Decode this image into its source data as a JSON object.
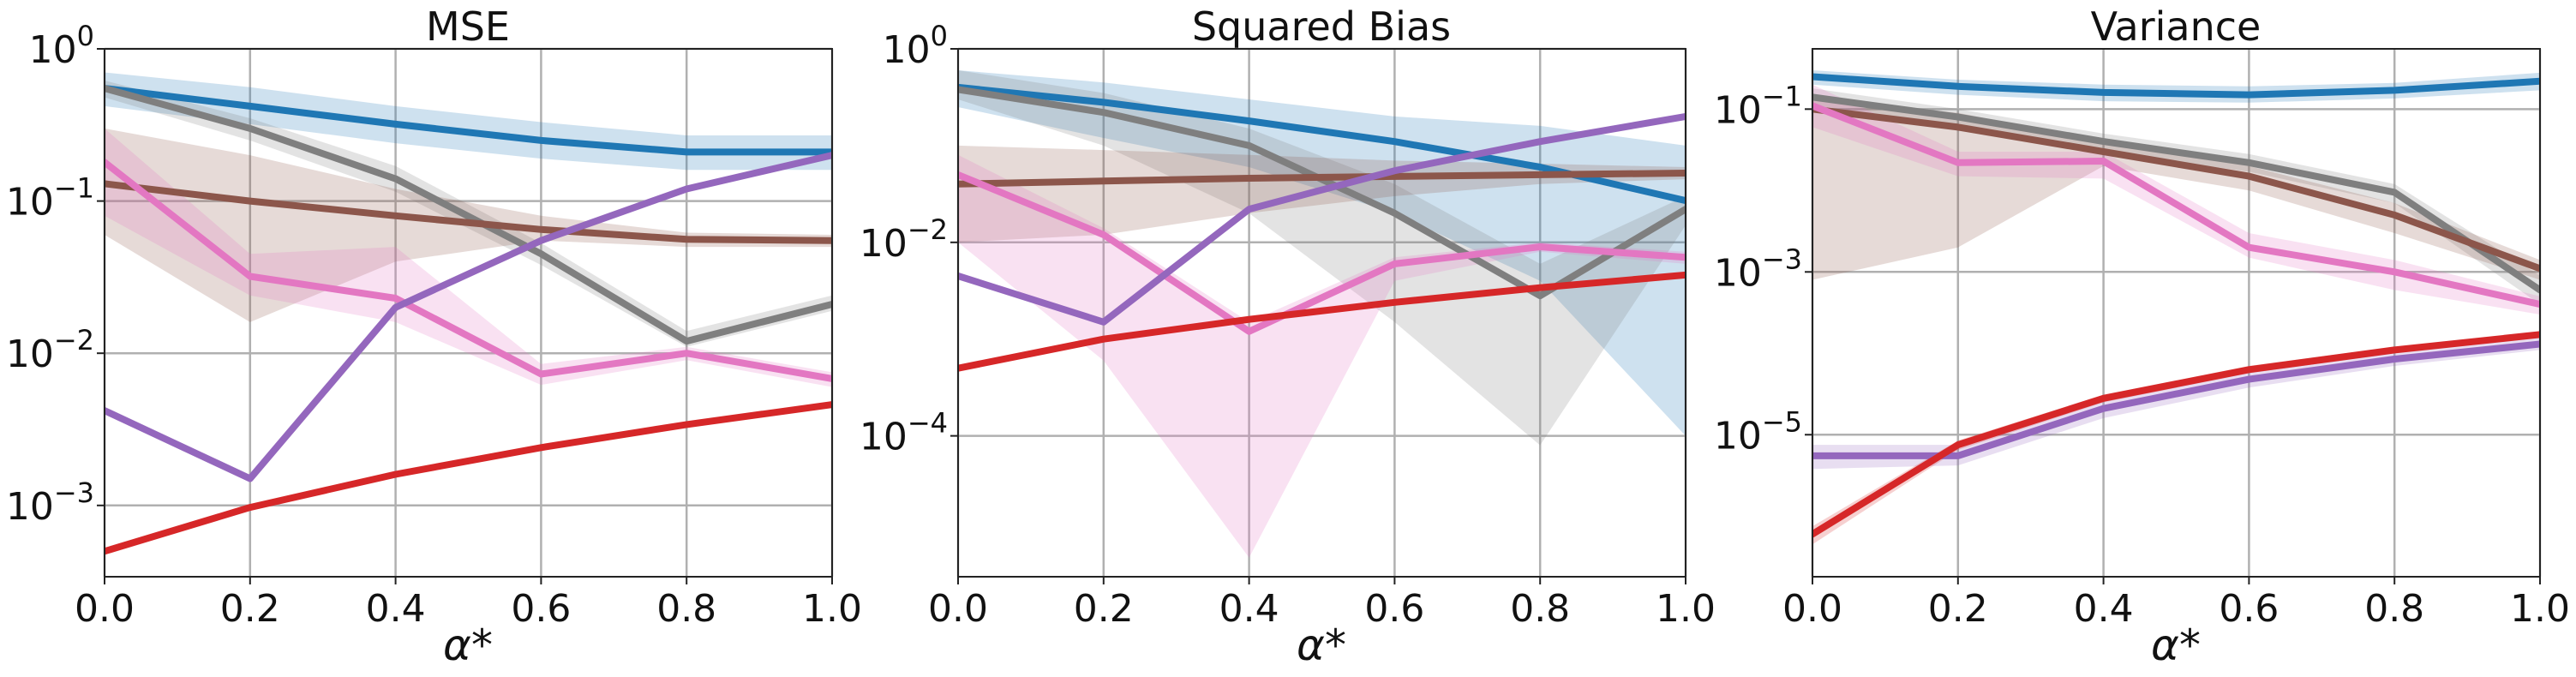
{
  "figure": {
    "background": "#ffffff"
  },
  "chart_data": [
    {
      "type": "line",
      "title": "MSE",
      "xlabel": "α*",
      "ylabel": "",
      "yscale": "log",
      "xlim": [
        0.0,
        1.0
      ],
      "ylim": [
        0.00034,
        1.0
      ],
      "grid": true,
      "x": [
        0.0,
        0.2,
        0.4,
        0.6,
        0.8,
        1.0
      ],
      "x_ticks": [
        "0.0",
        "0.2",
        "0.4",
        "0.6",
        "0.8",
        "1.0"
      ],
      "y_ticks": [
        {
          "base": "10",
          "exp": "0",
          "value": 1
        },
        {
          "base": "10",
          "exp": "−1",
          "value": 0.1
        },
        {
          "base": "10",
          "exp": "−2",
          "value": 0.01
        },
        {
          "base": "10",
          "exp": "−3",
          "value": 0.001
        }
      ],
      "series": [
        {
          "color": "#1f77b4",
          "values": [
            0.55,
            0.42,
            0.32,
            0.25,
            0.21,
            0.21
          ],
          "band_low": [
            0.42,
            0.32,
            0.24,
            0.19,
            0.16,
            0.16
          ],
          "band_high": [
            0.7,
            0.56,
            0.42,
            0.33,
            0.27,
            0.27
          ]
        },
        {
          "color": "#7f7f7f",
          "values": [
            0.55,
            0.3,
            0.14,
            0.045,
            0.012,
            0.021
          ],
          "band_low": [
            0.48,
            0.25,
            0.115,
            0.038,
            0.011,
            0.019
          ],
          "band_high": [
            0.62,
            0.35,
            0.17,
            0.053,
            0.014,
            0.024
          ]
        },
        {
          "color": "#8c564b",
          "values": [
            0.13,
            0.1,
            0.08,
            0.065,
            0.056,
            0.055
          ],
          "band_low": [
            0.06,
            0.016,
            0.04,
            0.055,
            0.05,
            0.05
          ],
          "band_high": [
            0.3,
            0.2,
            0.12,
            0.08,
            0.062,
            0.06
          ]
        },
        {
          "color": "#e377c2",
          "values": [
            0.18,
            0.032,
            0.023,
            0.0073,
            0.01,
            0.0068
          ],
          "band_low": [
            0.08,
            0.024,
            0.016,
            0.0062,
            0.009,
            0.006
          ],
          "band_high": [
            0.3,
            0.045,
            0.05,
            0.0085,
            0.011,
            0.0075
          ]
        },
        {
          "color": "#9467bd",
          "values": [
            0.0042,
            0.0015,
            0.02,
            0.055,
            0.12,
            0.2
          ],
          "band_low": [
            0.0041,
            0.00145,
            0.0195,
            0.054,
            0.118,
            0.195
          ],
          "band_high": [
            0.0043,
            0.00155,
            0.0205,
            0.056,
            0.122,
            0.205
          ]
        },
        {
          "color": "#d62728",
          "values": [
            0.0005,
            0.00097,
            0.0016,
            0.0024,
            0.0034,
            0.0046
          ],
          "band_low": [
            0.00048,
            0.00093,
            0.00155,
            0.00232,
            0.00325,
            0.0044
          ],
          "band_high": [
            0.00052,
            0.00101,
            0.00165,
            0.00248,
            0.00355,
            0.0048
          ]
        }
      ]
    },
    {
      "type": "line",
      "title": "Squared Bias",
      "xlabel": "α*",
      "ylabel": "",
      "yscale": "log",
      "xlim": [
        0.0,
        1.0
      ],
      "ylim": [
        3.5e-06,
        1.0
      ],
      "grid": true,
      "x": [
        0.0,
        0.2,
        0.4,
        0.6,
        0.8,
        1.0
      ],
      "x_ticks": [
        "0.0",
        "0.2",
        "0.4",
        "0.6",
        "0.8",
        "1.0"
      ],
      "y_ticks": [
        {
          "base": "10",
          "exp": "0",
          "value": 1
        },
        {
          "base": "10",
          "exp": "−2",
          "value": 0.01
        },
        {
          "base": "10",
          "exp": "−4",
          "value": 0.0001
        }
      ],
      "series": [
        {
          "color": "#1f77b4",
          "values": [
            0.4,
            0.28,
            0.18,
            0.11,
            0.06,
            0.027
          ],
          "band_low": [
            0.25,
            0.12,
            0.06,
            0.02,
            0.004,
            0.0001
          ],
          "band_high": [
            0.6,
            0.45,
            0.3,
            0.2,
            0.16,
            0.1
          ]
        },
        {
          "color": "#7f7f7f",
          "values": [
            0.38,
            0.22,
            0.1,
            0.02,
            0.0028,
            0.022
          ],
          "band_low": [
            0.3,
            0.1,
            0.02,
            0.0015,
            8e-05,
            0.015
          ],
          "band_high": [
            0.6,
            0.35,
            0.15,
            0.04,
            0.006,
            0.03
          ]
        },
        {
          "color": "#8c564b",
          "values": [
            0.04,
            0.043,
            0.046,
            0.048,
            0.05,
            0.052
          ],
          "band_low": [
            0.01,
            0.012,
            0.02,
            0.03,
            0.04,
            0.045
          ],
          "band_high": [
            0.1,
            0.09,
            0.08,
            0.07,
            0.065,
            0.06
          ]
        },
        {
          "color": "#e377c2",
          "values": [
            0.05,
            0.012,
            0.0012,
            0.006,
            0.009,
            0.007
          ],
          "band_low": [
            0.01,
            0.0006,
            5.5e-06,
            0.004,
            0.008,
            0.006
          ],
          "band_high": [
            0.08,
            0.014,
            0.0015,
            0.007,
            0.01,
            0.008
          ]
        },
        {
          "color": "#9467bd",
          "values": [
            0.0045,
            0.0015,
            0.022,
            0.055,
            0.11,
            0.2
          ],
          "band_low": [
            0.0044,
            0.00147,
            0.0215,
            0.054,
            0.108,
            0.196
          ],
          "band_high": [
            0.0046,
            0.00153,
            0.0225,
            0.056,
            0.112,
            0.204
          ]
        },
        {
          "color": "#d62728",
          "values": [
            0.0005,
            0.001,
            0.0016,
            0.0024,
            0.0034,
            0.0046
          ],
          "band_low": [
            0.00048,
            0.00096,
            0.00155,
            0.00232,
            0.00325,
            0.0044
          ],
          "band_high": [
            0.00052,
            0.00104,
            0.00165,
            0.00248,
            0.00355,
            0.0048
          ]
        }
      ]
    },
    {
      "type": "line",
      "title": "Variance",
      "xlabel": "α*",
      "ylabel": "",
      "yscale": "log",
      "xlim": [
        0.0,
        1.0
      ],
      "ylim": [
        1.8e-07,
        0.55
      ],
      "grid": true,
      "x": [
        0.0,
        0.2,
        0.4,
        0.6,
        0.8,
        1.0
      ],
      "x_ticks": [
        "0.0",
        "0.2",
        "0.4",
        "0.6",
        "0.8",
        "1.0"
      ],
      "y_ticks": [
        {
          "base": "10",
          "exp": "−1",
          "value": 0.1
        },
        {
          "base": "10",
          "exp": "−3",
          "value": 0.001
        },
        {
          "base": "10",
          "exp": "−5",
          "value": 1e-05
        }
      ],
      "series": [
        {
          "color": "#1f77b4",
          "values": [
            0.25,
            0.19,
            0.16,
            0.15,
            0.17,
            0.22
          ],
          "band_low": [
            0.2,
            0.15,
            0.125,
            0.12,
            0.135,
            0.17
          ],
          "band_high": [
            0.3,
            0.23,
            0.2,
            0.19,
            0.21,
            0.28
          ]
        },
        {
          "color": "#7f7f7f",
          "values": [
            0.14,
            0.08,
            0.04,
            0.022,
            0.0095,
            0.0006
          ],
          "band_low": [
            0.1,
            0.06,
            0.03,
            0.017,
            0.007,
            0.0004
          ],
          "band_high": [
            0.18,
            0.1,
            0.05,
            0.028,
            0.012,
            0.0009
          ]
        },
        {
          "color": "#8c564b",
          "values": [
            0.1,
            0.06,
            0.03,
            0.015,
            0.005,
            0.0011
          ],
          "band_low": [
            0.0008,
            0.002,
            0.02,
            0.01,
            0.003,
            0.0008
          ],
          "band_high": [
            0.14,
            0.09,
            0.04,
            0.02,
            0.007,
            0.0014
          ]
        },
        {
          "color": "#e377c2",
          "values": [
            0.11,
            0.022,
            0.023,
            0.002,
            0.001,
            0.0004
          ],
          "band_low": [
            0.06,
            0.015,
            0.014,
            0.0015,
            0.0006,
            0.0003
          ],
          "band_high": [
            0.2,
            0.03,
            0.03,
            0.003,
            0.0014,
            0.0005
          ]
        },
        {
          "color": "#9467bd",
          "values": [
            5.5e-06,
            5.5e-06,
            2.1e-05,
            4.8e-05,
            8.5e-05,
            0.00013
          ],
          "band_low": [
            3.8e-06,
            4.2e-06,
            1.6e-05,
            3.8e-05,
            7e-05,
            0.00011
          ],
          "band_high": [
            7.5e-06,
            7.5e-06,
            2.7e-05,
            5.8e-05,
            0.0001,
            0.000155
          ]
        },
        {
          "color": "#d62728",
          "values": [
            6e-07,
            7.5e-06,
            2.8e-05,
            6.3e-05,
            0.00011,
            0.00017
          ],
          "band_low": [
            4.5e-07,
            6.5e-06,
            2.5e-05,
            5.7e-05,
            0.0001,
            0.000155
          ],
          "band_high": [
            7.5e-07,
            8.5e-06,
            3.1e-05,
            7e-05,
            0.00012,
            0.000185
          ]
        }
      ]
    }
  ]
}
